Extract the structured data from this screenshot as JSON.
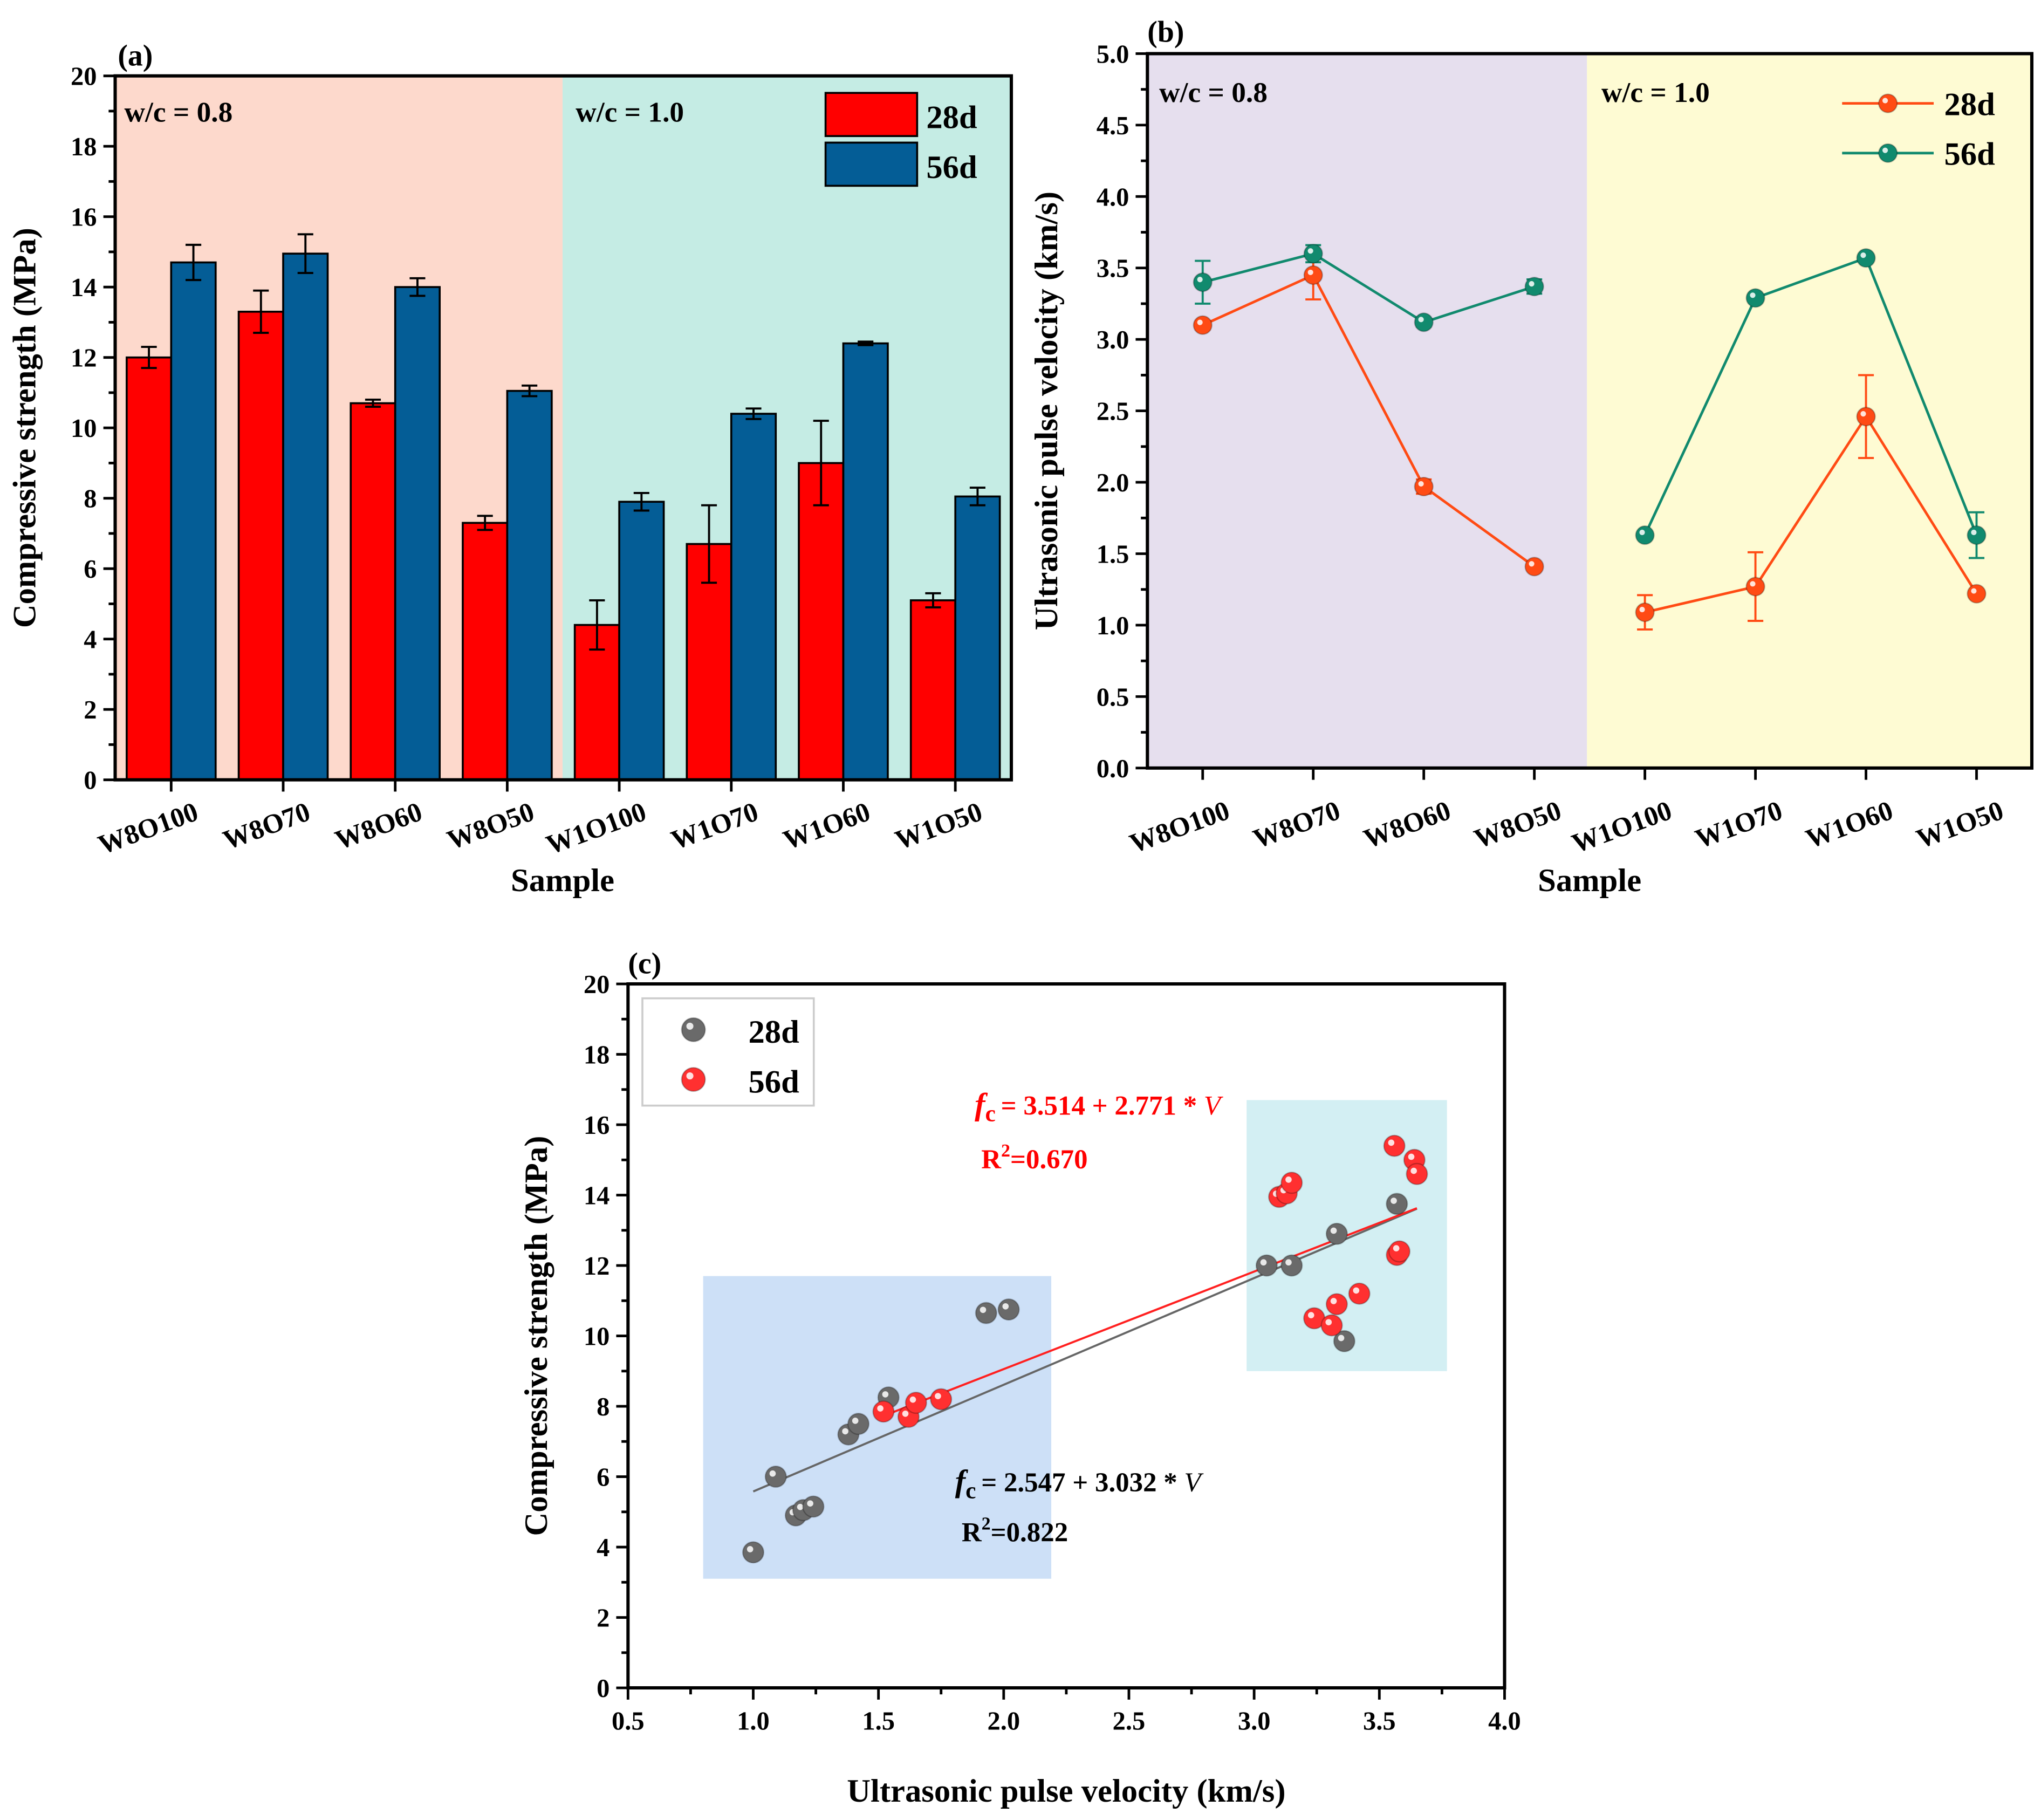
{
  "colors": {
    "c28": "#ff0000",
    "c56": "#045d96",
    "l28": "#ff4b14",
    "l56": "#118a6e",
    "s28": "#6a6a6a",
    "s56": "#ff3030"
  },
  "chart_data": [
    {
      "type": "bar",
      "panel": "(a)",
      "xlabel": "Sample",
      "ylabel": "Compressive strength (MPa)",
      "ylim": [
        0,
        20
      ],
      "yticks": [
        0,
        2,
        4,
        6,
        8,
        10,
        12,
        14,
        16,
        18,
        20
      ],
      "categories": [
        "W8O100",
        "W8O70",
        "W8O60",
        "W8O50",
        "W1O100",
        "W1O70",
        "W1O60",
        "W1O50"
      ],
      "regions": [
        "w/c = 0.8",
        "w/c = 1.0"
      ],
      "series": [
        {
          "name": "28d",
          "values": [
            12.0,
            13.3,
            10.7,
            7.3,
            4.4,
            6.7,
            9.0,
            5.1
          ],
          "errors": [
            0.3,
            0.6,
            0.1,
            0.2,
            0.7,
            1.1,
            1.2,
            0.2
          ]
        },
        {
          "name": "56d",
          "values": [
            14.7,
            14.95,
            14.0,
            11.05,
            7.9,
            10.4,
            12.4,
            8.05
          ],
          "errors": [
            0.5,
            0.55,
            0.25,
            0.15,
            0.25,
            0.15,
            0.05,
            0.25
          ]
        }
      ]
    },
    {
      "type": "line",
      "panel": "(b)",
      "xlabel": "Sample",
      "ylabel": "Ultrasonic pulse velocity (km/s)",
      "ylim": [
        0,
        5
      ],
      "yticks": [
        "0.0",
        "0.5",
        "1.0",
        "1.5",
        "2.0",
        "2.5",
        "3.0",
        "3.5",
        "4.0",
        "4.5",
        "5.0"
      ],
      "categories": [
        "W8O100",
        "W8O70",
        "W8O60",
        "W8O50",
        "W1O100",
        "W1O70",
        "W1O60",
        "W1O50"
      ],
      "regions": [
        "w/c = 0.8",
        "w/c = 1.0"
      ],
      "series": [
        {
          "name": "28d",
          "values": [
            3.1,
            3.45,
            1.97,
            1.41,
            1.09,
            1.27,
            2.46,
            1.22
          ],
          "errors": [
            0.03,
            0.17,
            0.05,
            0.02,
            0.12,
            0.24,
            0.29,
            0.02
          ]
        },
        {
          "name": "56d",
          "values": [
            3.4,
            3.6,
            3.12,
            3.37,
            1.63,
            3.29,
            3.57,
            1.63
          ],
          "errors": [
            0.15,
            0.06,
            0.03,
            0.05,
            0.02,
            0.02,
            0.02,
            0.16
          ]
        }
      ]
    },
    {
      "type": "scatter",
      "panel": "(c)",
      "xlabel": "Ultrasonic pulse velocity (km/s)",
      "ylabel": "Compressive strength (MPa)",
      "xlim": [
        0.5,
        4.0
      ],
      "ylim": [
        0,
        20
      ],
      "xticks": [
        "0.5",
        "1.0",
        "1.5",
        "2.0",
        "2.5",
        "3.0",
        "3.5",
        "4.0"
      ],
      "yticks": [
        0,
        2,
        4,
        6,
        8,
        10,
        12,
        14,
        16,
        18,
        20
      ],
      "series": [
        {
          "name": "28d",
          "points": [
            [
              1.0,
              3.85
            ],
            [
              1.09,
              6.0
            ],
            [
              1.17,
              4.9
            ],
            [
              1.2,
              5.05
            ],
            [
              1.24,
              5.15
            ],
            [
              1.38,
              7.2
            ],
            [
              1.42,
              7.5
            ],
            [
              1.54,
              8.25
            ],
            [
              1.93,
              10.65
            ],
            [
              2.02,
              10.75
            ],
            [
              3.05,
              12.0
            ],
            [
              3.15,
              12.0
            ],
            [
              3.33,
              12.9
            ],
            [
              3.57,
              13.75
            ],
            [
              3.36,
              9.85
            ]
          ],
          "fit": {
            "intercept": 2.547,
            "slope": 3.032,
            "range": [
              1.0,
              3.65
            ]
          },
          "equation_prefix": "= 2.547 + 3.032 * ",
          "r2": "R",
          "r2_value": "=0.822"
        },
        {
          "name": "56d",
          "points": [
            [
              1.52,
              7.85
            ],
            [
              1.62,
              7.7
            ],
            [
              1.65,
              8.1
            ],
            [
              1.75,
              8.2
            ],
            [
              3.1,
              13.95
            ],
            [
              3.13,
              14.05
            ],
            [
              3.15,
              14.35
            ],
            [
              3.56,
              15.4
            ],
            [
              3.64,
              15.0
            ],
            [
              3.65,
              14.6
            ],
            [
              3.57,
              12.3
            ],
            [
              3.58,
              12.4
            ],
            [
              3.24,
              10.5
            ],
            [
              3.31,
              10.3
            ],
            [
              3.33,
              10.9
            ],
            [
              3.42,
              11.2
            ]
          ],
          "fit": {
            "intercept": 3.514,
            "slope": 2.771,
            "range": [
              1.52,
              3.65
            ]
          },
          "equation_prefix": "= 3.514 + 2.771 * ",
          "r2": "R",
          "r2_value": "=0.670"
        }
      ],
      "equation_symbol": "f",
      "equation_sub": "c",
      "equation_var": "V",
      "r2_sup": "2"
    }
  ]
}
